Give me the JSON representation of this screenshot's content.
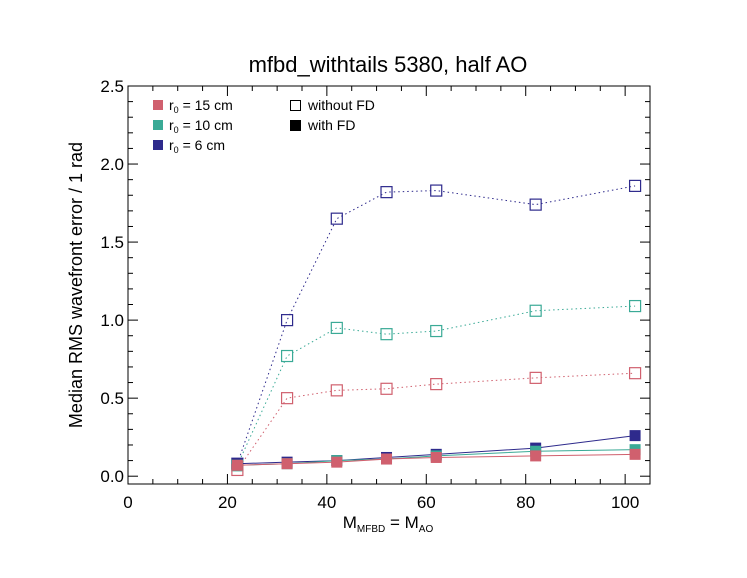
{
  "chart_data": {
    "type": "line",
    "title": "mfbd_withtails 5380, half AO",
    "xlabel": {
      "main": "M",
      "sub": "MFBD",
      "eq": " = M",
      "sub2": "AO"
    },
    "ylabel": "Median RMS wavefront error / 1 rad",
    "xlim": [
      0,
      105
    ],
    "ylim": [
      -0.05,
      2.5
    ],
    "xticks": [
      0,
      20,
      40,
      60,
      80,
      100
    ],
    "xtick_labels": [
      "0",
      "20",
      "40",
      "60",
      "80",
      "100"
    ],
    "yticks": [
      0.0,
      0.5,
      1.0,
      1.5,
      2.0,
      2.5
    ],
    "ytick_labels": [
      "0.0",
      "0.5",
      "1.0",
      "1.5",
      "2.0",
      "2.5"
    ],
    "grid": false,
    "legend_placement": "top-left",
    "legend_colors": [
      {
        "prefix": "r",
        "sub": "0",
        "text": " = 15 cm",
        "color": "#d0606e"
      },
      {
        "prefix": "r",
        "sub": "0",
        "text": " = 10 cm",
        "color": "#3aaa96"
      },
      {
        "prefix": "r",
        "sub": "0",
        "text": " = 6 cm",
        "color": "#2e2a8c"
      }
    ],
    "legend_styles": [
      {
        "text": "without FD",
        "marker": "open-square"
      },
      {
        "text": "with FD",
        "marker": "filled-square"
      }
    ],
    "x": [
      22,
      32,
      42,
      52,
      62,
      82,
      102
    ],
    "series": [
      {
        "color": "#2e2a8c",
        "style": "without FD",
        "values": [
          0.08,
          1.0,
          1.65,
          1.82,
          1.83,
          1.74,
          1.86
        ]
      },
      {
        "color": "#3aaa96",
        "style": "without FD",
        "values": [
          0.07,
          0.77,
          0.95,
          0.91,
          0.93,
          1.06,
          1.09
        ]
      },
      {
        "color": "#d0606e",
        "style": "without FD",
        "values": [
          0.04,
          0.5,
          0.55,
          0.56,
          0.59,
          0.63,
          0.66
        ]
      },
      {
        "color": "#2e2a8c",
        "style": "with FD",
        "values": [
          0.08,
          0.09,
          0.1,
          0.12,
          0.14,
          0.18,
          0.26
        ]
      },
      {
        "color": "#3aaa96",
        "style": "with FD",
        "values": [
          0.07,
          0.08,
          0.1,
          0.11,
          0.13,
          0.16,
          0.17
        ]
      },
      {
        "color": "#d0606e",
        "style": "with FD",
        "values": [
          0.07,
          0.08,
          0.09,
          0.11,
          0.12,
          0.13,
          0.14
        ]
      }
    ]
  }
}
